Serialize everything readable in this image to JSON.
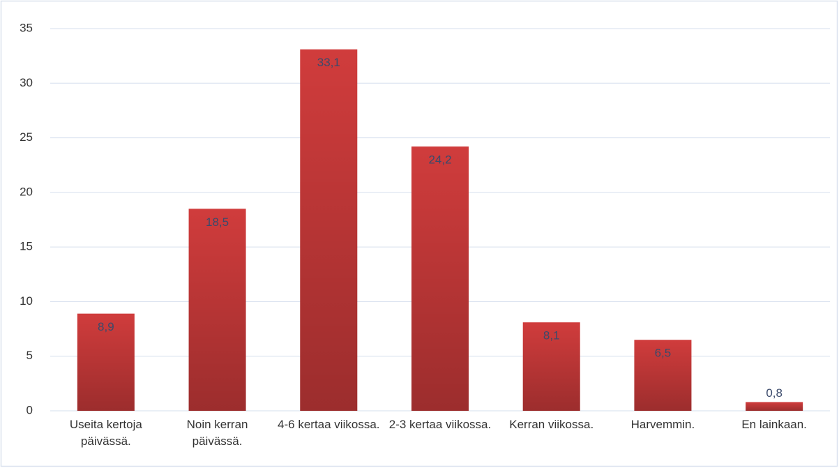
{
  "chart_data": {
    "type": "bar",
    "categories": [
      "Useita kertoja päivässä.",
      "Noin kerran päivässä.",
      "4-6 kertaa viikossa.",
      "2-3 kertaa viikossa.",
      "Kerran viikossa.",
      "Harvemmin.",
      "En lainkaan."
    ],
    "values": [
      8.9,
      18.5,
      33.1,
      24.2,
      8.1,
      6.5,
      0.8
    ],
    "value_labels": [
      "8,9",
      "18,5",
      "33,1",
      "24,2",
      "8,1",
      "6,5",
      "0,8"
    ],
    "color": "#d03c3c",
    "ylim": [
      0,
      35
    ],
    "yticks": [
      0,
      5,
      10,
      15,
      20,
      25,
      30,
      35
    ],
    "grid": true
  }
}
